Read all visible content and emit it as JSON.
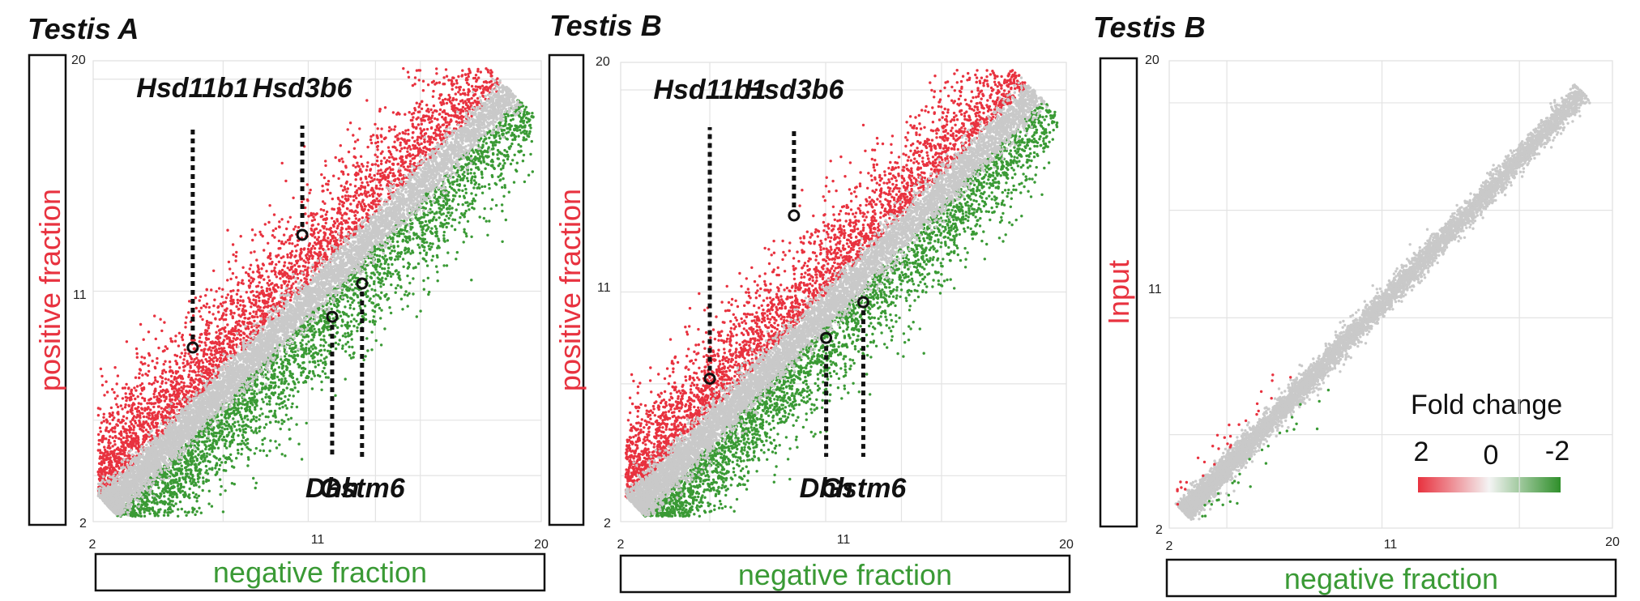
{
  "colors": {
    "up": "#e8323f",
    "down": "#3a9a35",
    "neutral": "#c9c9c9",
    "ylabel_positive": "#e8323f",
    "xlabel": "#3a9a35",
    "grid": "#e3e3e3"
  },
  "chart_data": [
    {
      "type": "scatter",
      "title": "Testis A",
      "xlabel": "negative fraction",
      "ylabel": "positive fraction",
      "xlim": [
        2,
        20
      ],
      "ylim": [
        2,
        20
      ],
      "xticks": [
        "2",
        "11",
        "20"
      ],
      "yticks": [
        "2",
        "11",
        "20"
      ],
      "series": [
        {
          "name": "enriched",
          "color": "up",
          "count": 3200,
          "spread": 1.7,
          "offset": 1.6
        },
        {
          "name": "depleted",
          "color": "down",
          "count": 3000,
          "spread": 1.5,
          "offset": -1.5
        },
        {
          "name": "unchanged",
          "color": "neutral",
          "count": 7000,
          "spread": 0.45,
          "offset": 0
        }
      ],
      "highlights": [
        {
          "label": "Hsd11b1",
          "x": 6.0,
          "y": 8.8,
          "label_pos": "top"
        },
        {
          "label": "Hsd3b6",
          "x": 10.4,
          "y": 13.2,
          "label_pos": "top"
        },
        {
          "label": "Dhh",
          "x": 11.6,
          "y": 10.0,
          "label_pos": "bottom"
        },
        {
          "label": "Gstm6",
          "x": 12.8,
          "y": 11.3,
          "label_pos": "bottom"
        }
      ]
    },
    {
      "type": "scatter",
      "title": "Testis B",
      "xlabel": "negative fraction",
      "ylabel": "positive fraction",
      "xlim": [
        2,
        20
      ],
      "ylim": [
        2,
        20
      ],
      "xticks": [
        "2",
        "11",
        "20"
      ],
      "yticks": [
        "2",
        "11",
        "20"
      ],
      "series": [
        {
          "name": "enriched",
          "color": "up",
          "count": 3200,
          "spread": 1.6,
          "offset": 1.5
        },
        {
          "name": "depleted",
          "color": "down",
          "count": 3000,
          "spread": 1.4,
          "offset": -1.4
        },
        {
          "name": "unchanged",
          "color": "neutral",
          "count": 7000,
          "spread": 0.45,
          "offset": 0
        }
      ],
      "highlights": [
        {
          "label": "Hsd11b1",
          "x": 5.6,
          "y": 7.6,
          "label_pos": "top"
        },
        {
          "label": "Hsd3b6",
          "x": 9.0,
          "y": 14.0,
          "label_pos": "top"
        },
        {
          "label": "Dhh",
          "x": 10.3,
          "y": 9.2,
          "label_pos": "bottom"
        },
        {
          "label": "Gstm6",
          "x": 11.8,
          "y": 10.6,
          "label_pos": "bottom"
        }
      ]
    },
    {
      "type": "scatter",
      "title": "Testis B",
      "xlabel": "negative fraction",
      "ylabel": "Input",
      "xlim": [
        2,
        20
      ],
      "ylim": [
        2,
        20
      ],
      "xticks": [
        "2",
        "11",
        "20"
      ],
      "yticks": [
        "2",
        "11",
        "20"
      ],
      "series": [
        {
          "name": "unchanged",
          "color": "neutral",
          "count": 7000,
          "spread": 0.28,
          "offset": 0
        },
        {
          "name": "enriched",
          "color": "up",
          "count": 30,
          "spread": 0.6,
          "offset": 0.9
        },
        {
          "name": "depleted",
          "color": "down",
          "count": 30,
          "spread": 0.6,
          "offset": -0.9
        }
      ],
      "legend": {
        "title": "Fold change",
        "ticks": [
          "2",
          "0",
          "-2"
        ],
        "placement": "bottom-right"
      }
    }
  ]
}
